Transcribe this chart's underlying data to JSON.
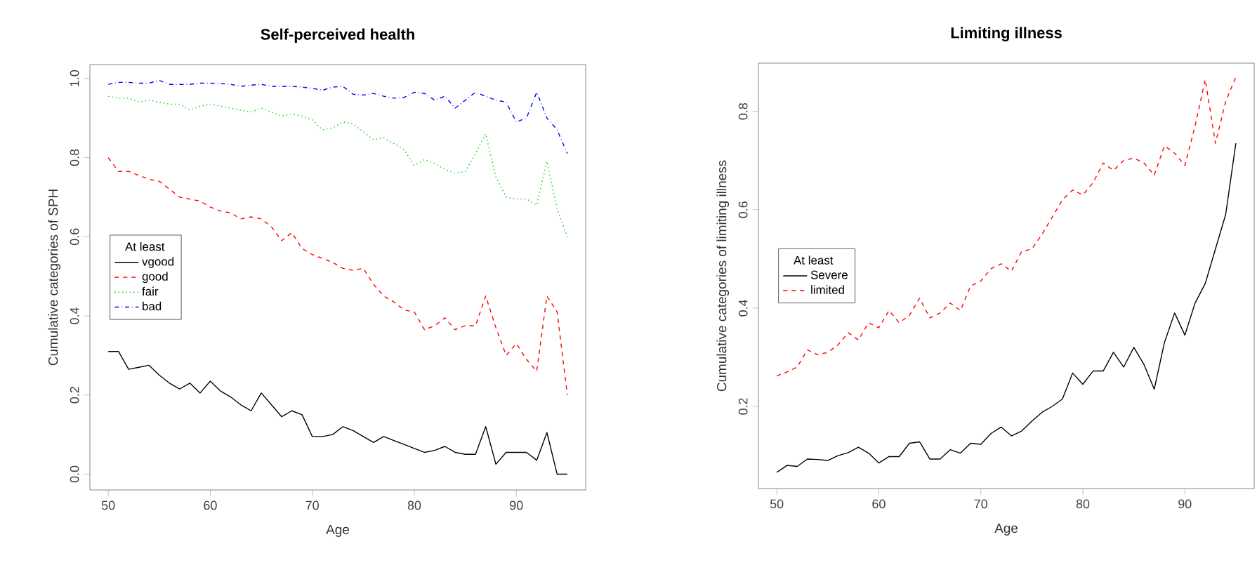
{
  "chart_data": [
    {
      "type": "line",
      "title": "Self-perceived health",
      "xlabel": "Age",
      "ylabel": "Cumulative categories of SPH",
      "legend_title": "At least",
      "legend": "left",
      "x": [
        50,
        51,
        52,
        53,
        54,
        55,
        56,
        57,
        58,
        59,
        60,
        61,
        62,
        63,
        64,
        65,
        66,
        67,
        68,
        69,
        70,
        71,
        72,
        73,
        74,
        75,
        76,
        77,
        78,
        79,
        80,
        81,
        82,
        83,
        84,
        85,
        86,
        87,
        88,
        89,
        90,
        91,
        92,
        93,
        94,
        95
      ],
      "xlim": [
        48.2,
        96.8
      ],
      "ylim": [
        -0.04,
        1.035
      ],
      "xticks": [
        50,
        60,
        70,
        80,
        90
      ],
      "yticks": [
        {
          "value": 0,
          "label": "0.0"
        },
        0.2,
        0.4,
        0.6,
        0.8,
        {
          "value": 1,
          "label": "1.0"
        }
      ],
      "series": [
        {
          "name": "vgood",
          "color": "#000000",
          "line_style": "solid",
          "values": [
            0.31,
            0.31,
            0.265,
            0.27,
            0.275,
            0.25,
            0.23,
            0.215,
            0.23,
            0.205,
            0.235,
            0.21,
            0.195,
            0.175,
            0.16,
            0.205,
            0.175,
            0.145,
            0.16,
            0.15,
            0.095,
            0.095,
            0.1,
            0.12,
            0.11,
            0.095,
            0.08,
            0.095,
            0.085,
            0.075,
            0.065,
            0.055,
            0.06,
            0.07,
            0.055,
            0.05,
            0.05,
            0.12,
            0.025,
            0.055,
            0.055,
            0.055,
            0.035,
            0.105,
            0.0,
            0.0
          ]
        },
        {
          "name": "good",
          "color": "#ff0000",
          "line_style": "dashed",
          "values": [
            0.8,
            0.765,
            0.765,
            0.755,
            0.745,
            0.74,
            0.72,
            0.7,
            0.695,
            0.69,
            0.675,
            0.665,
            0.66,
            0.645,
            0.65,
            0.645,
            0.625,
            0.59,
            0.61,
            0.57,
            0.555,
            0.545,
            0.535,
            0.52,
            0.515,
            0.52,
            0.48,
            0.45,
            0.435,
            0.415,
            0.41,
            0.365,
            0.375,
            0.395,
            0.365,
            0.375,
            0.375,
            0.45,
            0.37,
            0.3,
            0.33,
            0.29,
            0.26,
            0.45,
            0.41,
            0.2
          ]
        },
        {
          "name": "fair",
          "color": "#00cc00",
          "line_style": "dotted",
          "values": [
            0.955,
            0.95,
            0.95,
            0.94,
            0.945,
            0.94,
            0.935,
            0.935,
            0.92,
            0.93,
            0.935,
            0.93,
            0.925,
            0.92,
            0.915,
            0.925,
            0.915,
            0.905,
            0.91,
            0.905,
            0.895,
            0.87,
            0.875,
            0.89,
            0.885,
            0.865,
            0.845,
            0.85,
            0.835,
            0.82,
            0.78,
            0.795,
            0.785,
            0.77,
            0.76,
            0.765,
            0.81,
            0.86,
            0.75,
            0.7,
            0.695,
            0.695,
            0.68,
            0.79,
            0.67,
            0.6
          ]
        },
        {
          "name": "bad",
          "color": "#0000ff",
          "line_style": "dashdot",
          "values": [
            0.985,
            0.99,
            0.99,
            0.988,
            0.988,
            0.995,
            0.985,
            0.985,
            0.985,
            0.988,
            0.988,
            0.987,
            0.985,
            0.98,
            0.983,
            0.985,
            0.98,
            0.98,
            0.98,
            0.978,
            0.975,
            0.97,
            0.978,
            0.98,
            0.96,
            0.958,
            0.962,
            0.955,
            0.95,
            0.952,
            0.965,
            0.962,
            0.945,
            0.955,
            0.925,
            0.945,
            0.965,
            0.955,
            0.945,
            0.94,
            0.89,
            0.9,
            0.965,
            0.9,
            0.87,
            0.81
          ]
        }
      ]
    },
    {
      "type": "line",
      "title": "Limiting illness",
      "xlabel": "Age",
      "ylabel": "Cumulative categories of limiting illness",
      "legend_title": "At least",
      "legend": "left",
      "x": [
        50,
        51,
        52,
        53,
        54,
        55,
        56,
        57,
        58,
        59,
        60,
        61,
        62,
        63,
        64,
        65,
        66,
        67,
        68,
        69,
        70,
        71,
        72,
        73,
        74,
        75,
        76,
        77,
        78,
        79,
        80,
        81,
        82,
        83,
        84,
        85,
        86,
        87,
        88,
        89,
        90,
        91,
        92,
        93,
        94,
        95
      ],
      "xlim": [
        48.2,
        96.8
      ],
      "ylim": [
        0.033,
        0.898
      ],
      "xticks": [
        50,
        60,
        70,
        80,
        90
      ],
      "yticks": [
        0.2,
        0.4,
        0.6,
        0.8
      ],
      "series": [
        {
          "name": "Severe",
          "color": "#000000",
          "line_style": "solid",
          "values": [
            0.066,
            0.08,
            0.078,
            0.093,
            0.092,
            0.09,
            0.1,
            0.106,
            0.117,
            0.105,
            0.085,
            0.098,
            0.098,
            0.125,
            0.128,
            0.093,
            0.093,
            0.112,
            0.105,
            0.125,
            0.123,
            0.145,
            0.158,
            0.14,
            0.15,
            0.17,
            0.188,
            0.2,
            0.215,
            0.268,
            0.245,
            0.272,
            0.272,
            0.31,
            0.28,
            0.32,
            0.285,
            0.235,
            0.33,
            0.39,
            0.345,
            0.41,
            0.45,
            0.52,
            0.59,
            0.735
          ]
        },
        {
          "name": "limited",
          "color": "#ff0000",
          "line_style": "dashed",
          "values": [
            0.262,
            0.27,
            0.28,
            0.315,
            0.305,
            0.31,
            0.325,
            0.35,
            0.335,
            0.37,
            0.36,
            0.395,
            0.37,
            0.385,
            0.42,
            0.38,
            0.39,
            0.41,
            0.395,
            0.445,
            0.455,
            0.48,
            0.49,
            0.475,
            0.515,
            0.52,
            0.55,
            0.585,
            0.62,
            0.64,
            0.63,
            0.655,
            0.695,
            0.68,
            0.7,
            0.705,
            0.695,
            0.67,
            0.73,
            0.715,
            0.69,
            0.77,
            0.865,
            0.735,
            0.82,
            0.87
          ]
        }
      ]
    }
  ]
}
